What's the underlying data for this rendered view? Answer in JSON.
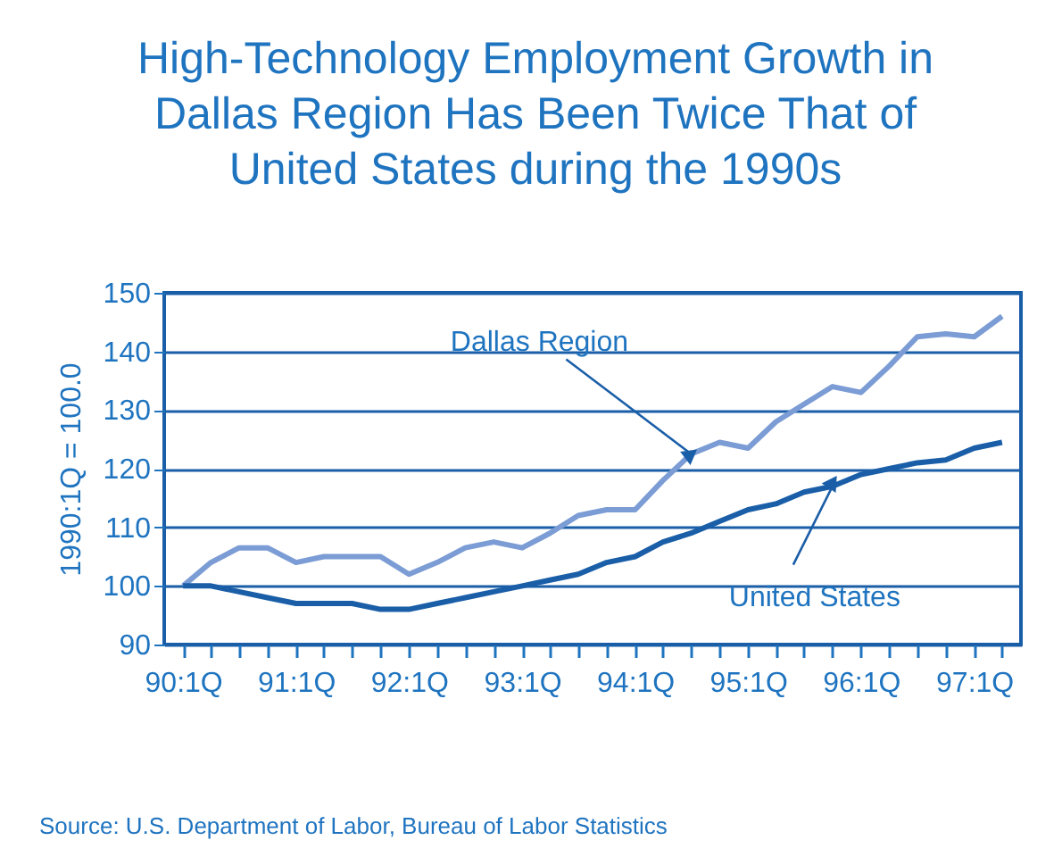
{
  "chart_data": {
    "type": "line",
    "title": "High-Technology Employment Growth in Dallas Region Has Been Twice That of United States during the 1990s",
    "ylabel": "1990:1Q = 100.0",
    "x": [
      "1990-01",
      "1990-04",
      "1990-07",
      "1990-10",
      "1991-01",
      "1991-04",
      "1991-07",
      "1991-10",
      "1992-01",
      "1992-04",
      "1992-07",
      "1992-10",
      "1993-01",
      "1993-04",
      "1993-07",
      "1993-10",
      "1994-01",
      "1994-04",
      "1994-07",
      "1994-10",
      "1995-01",
      "1995-04",
      "1995-07",
      "1995-10",
      "1996-01",
      "1996-04",
      "1996-07",
      "1996-10",
      "1997-01",
      "1997-04"
    ],
    "series": [
      {
        "name": "Dallas Region",
        "color": "#7b9cd4",
        "values": [
          100,
          104,
          106.5,
          106.5,
          104,
          105,
          105,
          105,
          102,
          104,
          106.5,
          107.5,
          106.5,
          109,
          112,
          113,
          113,
          118,
          122.5,
          124.5,
          123.5,
          128,
          131,
          134,
          133,
          137.5,
          142.5,
          143,
          142.5,
          146
        ]
      },
      {
        "name": "United States",
        "color": "#1a5ea8",
        "values": [
          100,
          100,
          99,
          98,
          97,
          97,
          97,
          96,
          96,
          97,
          98,
          99,
          100,
          101,
          102,
          104,
          105,
          107.5,
          109,
          111,
          113,
          114,
          116,
          117,
          119,
          120,
          121,
          121.5,
          123.5,
          124.5
        ]
      }
    ],
    "xlim": [
      "1989-11",
      "1997-06"
    ],
    "xticks": [
      {
        "value": "1990-01",
        "label": "90:1Q"
      },
      {
        "value": "1990-04",
        "label": null
      },
      {
        "value": "1990-07",
        "label": null
      },
      {
        "value": "1990-10",
        "label": null
      },
      {
        "value": "1991-01",
        "label": "91:1Q"
      },
      {
        "value": "1991-04",
        "label": null
      },
      {
        "value": "1991-07",
        "label": null
      },
      {
        "value": "1991-10",
        "label": null
      },
      {
        "value": "1992-01",
        "label": "92:1Q"
      },
      {
        "value": "1992-04",
        "label": null
      },
      {
        "value": "1992-07",
        "label": null
      },
      {
        "value": "1992-10",
        "label": null
      },
      {
        "value": "1993-01",
        "label": "93:1Q"
      },
      {
        "value": "1993-04",
        "label": null
      },
      {
        "value": "1993-07",
        "label": null
      },
      {
        "value": "1993-10",
        "label": null
      },
      {
        "value": "1994-01",
        "label": "94:1Q"
      },
      {
        "value": "1994-04",
        "label": null
      },
      {
        "value": "1994-07",
        "label": null
      },
      {
        "value": "1994-10",
        "label": null
      },
      {
        "value": "1995-01",
        "label": "95:1Q"
      },
      {
        "value": "1995-04",
        "label": null
      },
      {
        "value": "1995-07",
        "label": null
      },
      {
        "value": "1995-10",
        "label": null
      },
      {
        "value": "1996-01",
        "label": "96:1Q"
      },
      {
        "value": "1996-04",
        "label": null
      },
      {
        "value": "1996-07",
        "label": null
      },
      {
        "value": "1996-10",
        "label": null
      },
      {
        "value": "1997-01",
        "label": "97:1Q"
      },
      {
        "value": "1997-04",
        "label": null
      }
    ],
    "ylim": [
      90,
      150
    ],
    "yticks": [
      90,
      100,
      110,
      120,
      130,
      140,
      150
    ],
    "grid": "y",
    "legend": false,
    "annotations": [
      "Source: U.S. Department of Labor, Bureau of Labor Statistics"
    ]
  }
}
